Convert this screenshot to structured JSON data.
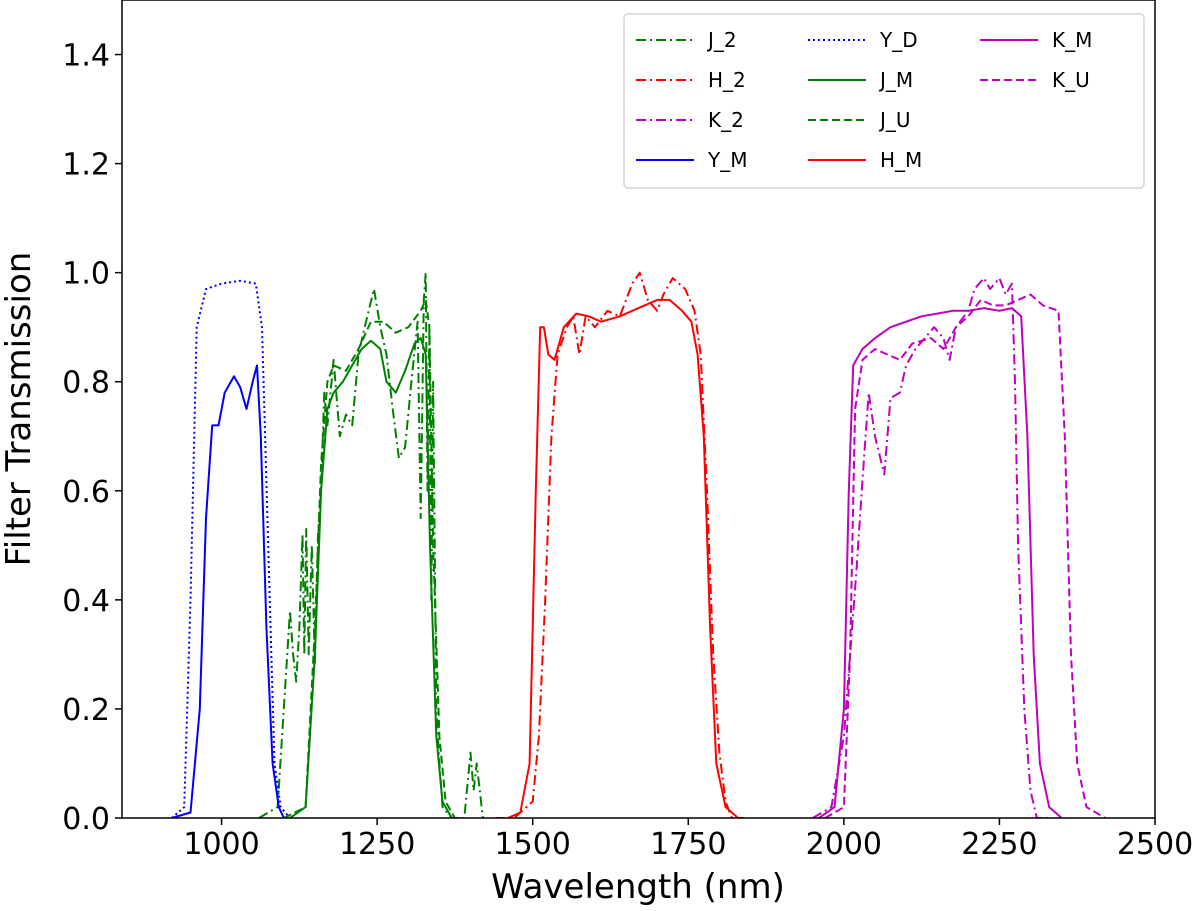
{
  "chart_data": {
    "type": "line",
    "title": "",
    "xlabel": "Wavelength (nm)",
    "ylabel": "Filter Transmission",
    "xlim": [
      840,
      2500
    ],
    "ylim": [
      0,
      1.5
    ],
    "xticks": [
      1000,
      1250,
      1500,
      1750,
      2000,
      2250,
      2500
    ],
    "xtick_labels": [
      "1000",
      "1250",
      "1500",
      "1750",
      "2000",
      "2250",
      "2500"
    ],
    "yticks": [
      0.0,
      0.2,
      0.4,
      0.6,
      0.8,
      1.0,
      1.2,
      1.4
    ],
    "ytick_labels": [
      "0.0",
      "0.2",
      "0.4",
      "0.6",
      "0.8",
      "1.0",
      "1.2",
      "1.4"
    ],
    "grid": false,
    "legend_position": "top-right",
    "legend_columns": 3,
    "series": [
      {
        "name": "J_2",
        "color": "#008000",
        "style": "dashdot",
        "points": [
          [
            1060,
            0
          ],
          [
            1090,
            0.02
          ],
          [
            1100,
            0.2
          ],
          [
            1110,
            0.38
          ],
          [
            1115,
            0.3
          ],
          [
            1120,
            0.25
          ],
          [
            1125,
            0.35
          ],
          [
            1130,
            0.52
          ],
          [
            1133,
            0.3
          ],
          [
            1136,
            0.53
          ],
          [
            1140,
            0.3
          ],
          [
            1145,
            0.5
          ],
          [
            1150,
            0.28
          ],
          [
            1155,
            0.52
          ],
          [
            1160,
            0.6
          ],
          [
            1165,
            0.78
          ],
          [
            1170,
            0.72
          ],
          [
            1180,
            0.84
          ],
          [
            1190,
            0.7
          ],
          [
            1200,
            0.74
          ],
          [
            1210,
            0.72
          ],
          [
            1220,
            0.85
          ],
          [
            1230,
            0.9
          ],
          [
            1245,
            0.97
          ],
          [
            1255,
            0.9
          ],
          [
            1265,
            0.85
          ],
          [
            1275,
            0.75
          ],
          [
            1285,
            0.66
          ],
          [
            1295,
            0.68
          ],
          [
            1305,
            0.8
          ],
          [
            1315,
            0.91
          ],
          [
            1320,
            0.55
          ],
          [
            1325,
            0.95
          ],
          [
            1328,
            1.0
          ],
          [
            1331,
            0.6
          ],
          [
            1334,
            0.9
          ],
          [
            1337,
            0.4
          ],
          [
            1340,
            0.8
          ],
          [
            1345,
            0.2
          ],
          [
            1350,
            0.1
          ],
          [
            1355,
            0.02
          ],
          [
            1370,
            0.0
          ],
          [
            1390,
            0.0
          ],
          [
            1400,
            0.12
          ],
          [
            1405,
            0.05
          ],
          [
            1410,
            0.1
          ],
          [
            1420,
            0.0
          ]
        ]
      },
      {
        "name": "H_2",
        "color": "#ff0000",
        "style": "dashdot",
        "points": [
          [
            1440,
            0
          ],
          [
            1470,
            0
          ],
          [
            1500,
            0.03
          ],
          [
            1510,
            0.15
          ],
          [
            1520,
            0.4
          ],
          [
            1530,
            0.7
          ],
          [
            1540,
            0.85
          ],
          [
            1555,
            0.9
          ],
          [
            1565,
            0.92
          ],
          [
            1575,
            0.85
          ],
          [
            1585,
            0.92
          ],
          [
            1600,
            0.9
          ],
          [
            1620,
            0.93
          ],
          [
            1640,
            0.92
          ],
          [
            1660,
            0.98
          ],
          [
            1672,
            1.0
          ],
          [
            1685,
            0.95
          ],
          [
            1700,
            0.93
          ],
          [
            1710,
            0.96
          ],
          [
            1725,
            0.99
          ],
          [
            1745,
            0.97
          ],
          [
            1760,
            0.93
          ],
          [
            1770,
            0.85
          ],
          [
            1780,
            0.6
          ],
          [
            1790,
            0.3
          ],
          [
            1800,
            0.12
          ],
          [
            1810,
            0.03
          ],
          [
            1820,
            0.0
          ],
          [
            1840,
            0
          ]
        ]
      },
      {
        "name": "K_2",
        "color": "#bf00bf",
        "style": "dashdot",
        "points": [
          [
            1950,
            0
          ],
          [
            1980,
            0.02
          ],
          [
            2000,
            0.15
          ],
          [
            2010,
            0.3
          ],
          [
            2020,
            0.45
          ],
          [
            2030,
            0.62
          ],
          [
            2040,
            0.78
          ],
          [
            2050,
            0.7
          ],
          [
            2065,
            0.63
          ],
          [
            2075,
            0.77
          ],
          [
            2090,
            0.78
          ],
          [
            2100,
            0.83
          ],
          [
            2115,
            0.86
          ],
          [
            2130,
            0.88
          ],
          [
            2145,
            0.9
          ],
          [
            2160,
            0.88
          ],
          [
            2170,
            0.84
          ],
          [
            2180,
            0.9
          ],
          [
            2200,
            0.93
          ],
          [
            2210,
            0.97
          ],
          [
            2225,
            0.99
          ],
          [
            2235,
            0.97
          ],
          [
            2250,
            0.99
          ],
          [
            2260,
            0.96
          ],
          [
            2270,
            0.98
          ],
          [
            2275,
            0.8
          ],
          [
            2280,
            0.5
          ],
          [
            2290,
            0.2
          ],
          [
            2300,
            0.05
          ],
          [
            2310,
            0.0
          ],
          [
            2330,
            0
          ]
        ]
      },
      {
        "name": "Y_M",
        "color": "#0000ff",
        "style": "solid",
        "points": [
          [
            920,
            0
          ],
          [
            950,
            0.01
          ],
          [
            965,
            0.2
          ],
          [
            975,
            0.55
          ],
          [
            985,
            0.72
          ],
          [
            995,
            0.72
          ],
          [
            1005,
            0.78
          ],
          [
            1020,
            0.81
          ],
          [
            1030,
            0.79
          ],
          [
            1040,
            0.75
          ],
          [
            1050,
            0.8
          ],
          [
            1057,
            0.83
          ],
          [
            1063,
            0.7
          ],
          [
            1072,
            0.35
          ],
          [
            1082,
            0.1
          ],
          [
            1092,
            0.02
          ],
          [
            1100,
            0
          ]
        ]
      },
      {
        "name": "Y_D",
        "color": "#0000ff",
        "style": "dotted",
        "points": [
          [
            920,
            0
          ],
          [
            940,
            0.02
          ],
          [
            950,
            0.4
          ],
          [
            960,
            0.9
          ],
          [
            975,
            0.97
          ],
          [
            1000,
            0.98
          ],
          [
            1030,
            0.985
          ],
          [
            1055,
            0.98
          ],
          [
            1065,
            0.9
          ],
          [
            1075,
            0.5
          ],
          [
            1085,
            0.1
          ],
          [
            1095,
            0.02
          ],
          [
            1110,
            0
          ]
        ]
      },
      {
        "name": "J_M",
        "color": "#008000",
        "style": "solid",
        "points": [
          [
            1110,
            0
          ],
          [
            1135,
            0.02
          ],
          [
            1150,
            0.3
          ],
          [
            1160,
            0.6
          ],
          [
            1170,
            0.75
          ],
          [
            1180,
            0.78
          ],
          [
            1195,
            0.8
          ],
          [
            1210,
            0.83
          ],
          [
            1225,
            0.86
          ],
          [
            1240,
            0.875
          ],
          [
            1255,
            0.86
          ],
          [
            1265,
            0.8
          ],
          [
            1280,
            0.78
          ],
          [
            1295,
            0.82
          ],
          [
            1310,
            0.87
          ],
          [
            1320,
            0.88
          ],
          [
            1328,
            0.85
          ],
          [
            1335,
            0.5
          ],
          [
            1345,
            0.15
          ],
          [
            1355,
            0.03
          ],
          [
            1370,
            0
          ]
        ]
      },
      {
        "name": "J_U",
        "color": "#008000",
        "style": "dashed",
        "points": [
          [
            1100,
            0
          ],
          [
            1135,
            0.02
          ],
          [
            1150,
            0.35
          ],
          [
            1160,
            0.65
          ],
          [
            1170,
            0.8
          ],
          [
            1180,
            0.83
          ],
          [
            1200,
            0.82
          ],
          [
            1220,
            0.86
          ],
          [
            1240,
            0.91
          ],
          [
            1260,
            0.91
          ],
          [
            1280,
            0.89
          ],
          [
            1300,
            0.9
          ],
          [
            1320,
            0.93
          ],
          [
            1328,
            0.95
          ],
          [
            1334,
            0.9
          ],
          [
            1340,
            0.5
          ],
          [
            1350,
            0.15
          ],
          [
            1360,
            0.03
          ],
          [
            1375,
            0
          ]
        ]
      },
      {
        "name": "H_M",
        "color": "#ff0000",
        "style": "solid",
        "points": [
          [
            1460,
            0
          ],
          [
            1480,
            0.01
          ],
          [
            1495,
            0.1
          ],
          [
            1505,
            0.6
          ],
          [
            1512,
            0.9
          ],
          [
            1518,
            0.9
          ],
          [
            1525,
            0.85
          ],
          [
            1535,
            0.84
          ],
          [
            1550,
            0.9
          ],
          [
            1570,
            0.925
          ],
          [
            1590,
            0.92
          ],
          [
            1610,
            0.91
          ],
          [
            1640,
            0.92
          ],
          [
            1670,
            0.935
          ],
          [
            1700,
            0.95
          ],
          [
            1720,
            0.95
          ],
          [
            1740,
            0.93
          ],
          [
            1755,
            0.91
          ],
          [
            1765,
            0.85
          ],
          [
            1775,
            0.7
          ],
          [
            1785,
            0.35
          ],
          [
            1795,
            0.1
          ],
          [
            1810,
            0.02
          ],
          [
            1830,
            0
          ]
        ]
      },
      {
        "name": "K_M",
        "color": "#bf00bf",
        "style": "solid",
        "points": [
          [
            1960,
            0
          ],
          [
            1985,
            0.02
          ],
          [
            2000,
            0.2
          ],
          [
            2008,
            0.6
          ],
          [
            2015,
            0.83
          ],
          [
            2030,
            0.86
          ],
          [
            2050,
            0.88
          ],
          [
            2075,
            0.9
          ],
          [
            2100,
            0.91
          ],
          [
            2125,
            0.92
          ],
          [
            2150,
            0.925
          ],
          [
            2175,
            0.93
          ],
          [
            2200,
            0.93
          ],
          [
            2225,
            0.935
          ],
          [
            2250,
            0.93
          ],
          [
            2270,
            0.935
          ],
          [
            2285,
            0.92
          ],
          [
            2295,
            0.7
          ],
          [
            2305,
            0.3
          ],
          [
            2315,
            0.1
          ],
          [
            2330,
            0.02
          ],
          [
            2350,
            0
          ]
        ]
      },
      {
        "name": "K_U",
        "color": "#bf00bf",
        "style": "dashed",
        "points": [
          [
            1970,
            0
          ],
          [
            2000,
            0.02
          ],
          [
            2010,
            0.3
          ],
          [
            2018,
            0.75
          ],
          [
            2030,
            0.84
          ],
          [
            2050,
            0.86
          ],
          [
            2070,
            0.85
          ],
          [
            2090,
            0.84
          ],
          [
            2110,
            0.87
          ],
          [
            2140,
            0.88
          ],
          [
            2160,
            0.86
          ],
          [
            2180,
            0.9
          ],
          [
            2200,
            0.92
          ],
          [
            2220,
            0.95
          ],
          [
            2240,
            0.94
          ],
          [
            2260,
            0.94
          ],
          [
            2280,
            0.95
          ],
          [
            2300,
            0.96
          ],
          [
            2320,
            0.94
          ],
          [
            2345,
            0.93
          ],
          [
            2355,
            0.7
          ],
          [
            2365,
            0.3
          ],
          [
            2375,
            0.1
          ],
          [
            2390,
            0.02
          ],
          [
            2420,
            0
          ]
        ]
      }
    ]
  }
}
